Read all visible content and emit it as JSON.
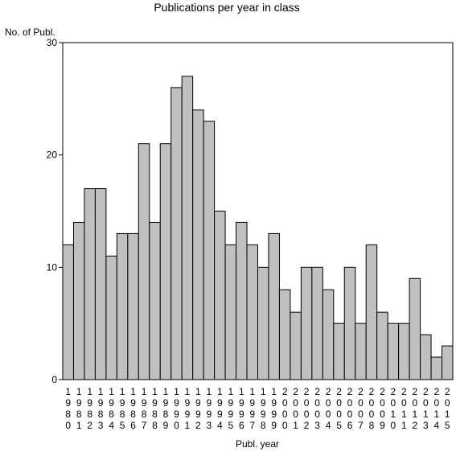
{
  "chart_data": {
    "type": "bar",
    "title": "Publications per year in class",
    "ylabel": "No. of Publ.",
    "xlabel": "Publ. year",
    "ylim": [
      0,
      30
    ],
    "yticks": [
      0,
      10,
      20,
      30
    ],
    "grid": false,
    "categories": [
      "1980",
      "1981",
      "1982",
      "1983",
      "1984",
      "1985",
      "1986",
      "1987",
      "1988",
      "1989",
      "1990",
      "1991",
      "1992",
      "1993",
      "1994",
      "1995",
      "1996",
      "1997",
      "1998",
      "1999",
      "2000",
      "2001",
      "2002",
      "2003",
      "2004",
      "2005",
      "2006",
      "2007",
      "2008",
      "2009",
      "2010",
      "2011",
      "2012",
      "2013",
      "2014",
      "2015"
    ],
    "values": [
      12,
      14,
      17,
      17,
      11,
      13,
      13,
      21,
      14,
      21,
      26,
      27,
      24,
      23,
      15,
      12,
      14,
      12,
      10,
      13,
      8,
      6,
      10,
      10,
      8,
      5,
      10,
      5,
      12,
      6,
      5,
      5,
      9,
      4,
      2,
      3
    ],
    "bar_color": "#c0c0c0",
    "edge_color": "#000000"
  }
}
